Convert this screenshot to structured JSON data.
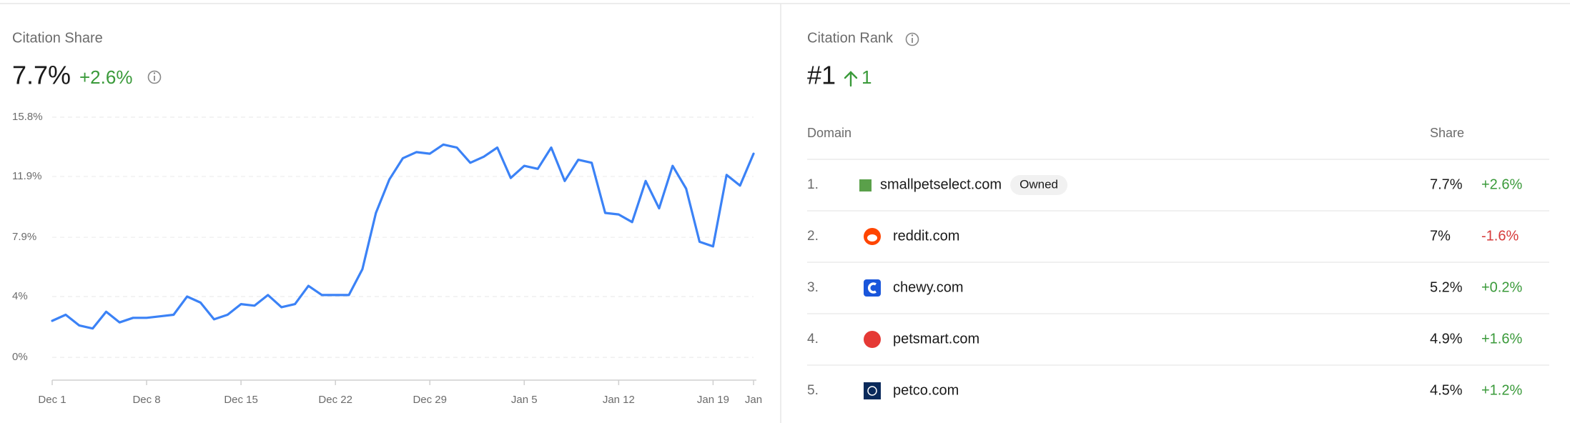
{
  "chart_data": {
    "type": "line",
    "title": "Citation Share",
    "value": "7.7%",
    "change": "+2.6%",
    "categories": [
      "Dec 1",
      null,
      null,
      null,
      null,
      null,
      null,
      "Dec 8",
      null,
      null,
      null,
      null,
      null,
      null,
      "Dec 15",
      null,
      null,
      null,
      null,
      null,
      null,
      "Dec 22",
      null,
      null,
      null,
      null,
      null,
      null,
      "Dec 29",
      null,
      null,
      null,
      null,
      null,
      null,
      "Jan 5",
      null,
      null,
      null,
      null,
      null,
      null,
      "Jan 12",
      null,
      null,
      null,
      null,
      null,
      null,
      "Jan 19",
      null,
      null,
      "Jan"
    ],
    "values": [
      2.4,
      2.8,
      2.1,
      1.9,
      3.0,
      2.3,
      2.6,
      2.6,
      2.7,
      2.8,
      4.0,
      3.6,
      2.5,
      2.8,
      3.5,
      3.4,
      4.1,
      3.3,
      3.5,
      4.7,
      4.1,
      4.1,
      4.1,
      5.8,
      9.5,
      11.7,
      13.1,
      13.5,
      13.4,
      14.0,
      13.8,
      12.8,
      13.2,
      13.8,
      11.8,
      12.6,
      12.4,
      13.8,
      11.6,
      13.0,
      12.8,
      9.5,
      9.4,
      8.9,
      11.6,
      9.8,
      12.6,
      11.1,
      7.6,
      7.3,
      12.0,
      11.3,
      13.4
    ],
    "color": "#3b82f6",
    "ylim": [
      -1.5,
      15.8
    ],
    "yticks": [
      {
        "value": 0,
        "label": "0%"
      },
      {
        "value": 4,
        "label": "4%"
      },
      {
        "value": 7.9,
        "label": "7.9%"
      },
      {
        "value": 11.9,
        "label": "11.9%"
      },
      {
        "value": 15.8,
        "label": "15.8%"
      }
    ],
    "grid": true
  },
  "rank_panel": {
    "title": "Citation Rank",
    "rank": "#1",
    "change": "1",
    "table": {
      "headers": [
        "Domain",
        "Share"
      ],
      "rows": [
        {
          "rank": "1.",
          "domain": "smallpetselect.com",
          "badge": "Owned",
          "share": "7.7%",
          "change": "+2.6%"
        },
        {
          "rank": "2.",
          "domain": "reddit.com",
          "share": "7%",
          "change": "-1.6%"
        },
        {
          "rank": "3.",
          "domain": "chewy.com",
          "share": "5.2%",
          "change": "+0.2%"
        },
        {
          "rank": "4.",
          "domain": "petsmart.com",
          "share": "4.9%",
          "change": "+1.6%"
        },
        {
          "rank": "5.",
          "domain": "petco.com",
          "share": "4.5%",
          "change": "+1.2%"
        }
      ]
    }
  }
}
